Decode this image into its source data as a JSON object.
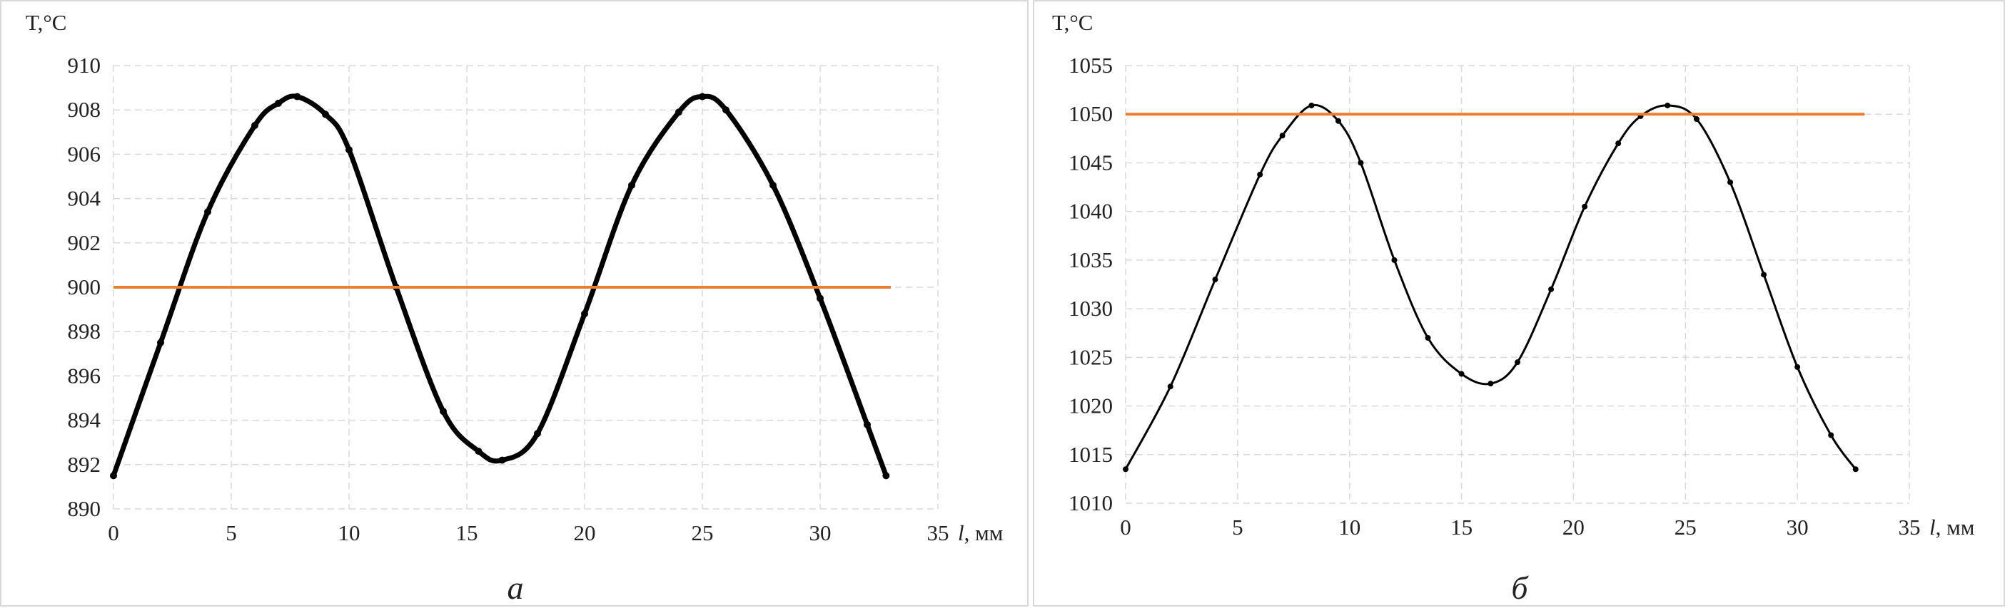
{
  "colors": {
    "curve": "#000000",
    "reference": "#ed7d31",
    "grid": "#d9d9d9"
  },
  "chart_data": [
    {
      "type": "line",
      "caption": "а",
      "ylabel": "T,°C",
      "xlabel_italic": "l",
      "xlabel_unit": ", мм",
      "xlim": [
        0,
        35
      ],
      "ylim": [
        890,
        910
      ],
      "xticks": [
        0,
        5,
        10,
        15,
        20,
        25,
        30,
        35
      ],
      "yticks": [
        890,
        892,
        894,
        896,
        898,
        900,
        902,
        904,
        906,
        908,
        910
      ],
      "grid": true,
      "series": [
        {
          "kind": "curve",
          "marker": "dot",
          "x": [
            0,
            2,
            4,
            6,
            7,
            7.8,
            9,
            10,
            12,
            14,
            15.5,
            16.5,
            18,
            20,
            22,
            24,
            25,
            26,
            28,
            30,
            32,
            32.8
          ],
          "y": [
            891.5,
            897.5,
            903.4,
            907.3,
            908.3,
            908.6,
            907.8,
            906.2,
            900.0,
            894.4,
            892.6,
            892.2,
            893.4,
            898.8,
            904.6,
            907.9,
            908.6,
            908.0,
            904.6,
            899.5,
            893.8,
            891.5
          ]
        },
        {
          "kind": "reference",
          "x": [
            0,
            33
          ],
          "y": [
            900,
            900
          ]
        }
      ]
    },
    {
      "type": "line",
      "caption": "б",
      "ylabel": "T,°C",
      "xlabel_italic": "l",
      "xlabel_unit": ", мм",
      "xlim": [
        0,
        35
      ],
      "ylim": [
        1010,
        1055
      ],
      "xticks": [
        0,
        5,
        10,
        15,
        20,
        25,
        30,
        35
      ],
      "yticks": [
        1010,
        1015,
        1020,
        1025,
        1030,
        1035,
        1040,
        1045,
        1050,
        1055
      ],
      "grid": true,
      "series": [
        {
          "kind": "curve",
          "marker": "dot",
          "x": [
            0,
            2,
            4,
            6,
            7,
            8.3,
            9.5,
            10.5,
            12,
            13.5,
            15,
            16.3,
            17.5,
            19,
            20.5,
            22,
            23,
            24.2,
            25.5,
            27,
            28.5,
            30,
            31.5,
            32.6
          ],
          "y": [
            1013.5,
            1022.0,
            1033.0,
            1043.8,
            1047.8,
            1050.9,
            1049.3,
            1045.0,
            1035.0,
            1027.0,
            1023.3,
            1022.3,
            1024.5,
            1032.0,
            1040.5,
            1047.0,
            1049.8,
            1050.9,
            1049.5,
            1043.0,
            1033.5,
            1024.0,
            1017.0,
            1013.5
          ]
        },
        {
          "kind": "reference",
          "x": [
            0,
            33
          ],
          "y": [
            1050,
            1050
          ]
        }
      ]
    }
  ]
}
